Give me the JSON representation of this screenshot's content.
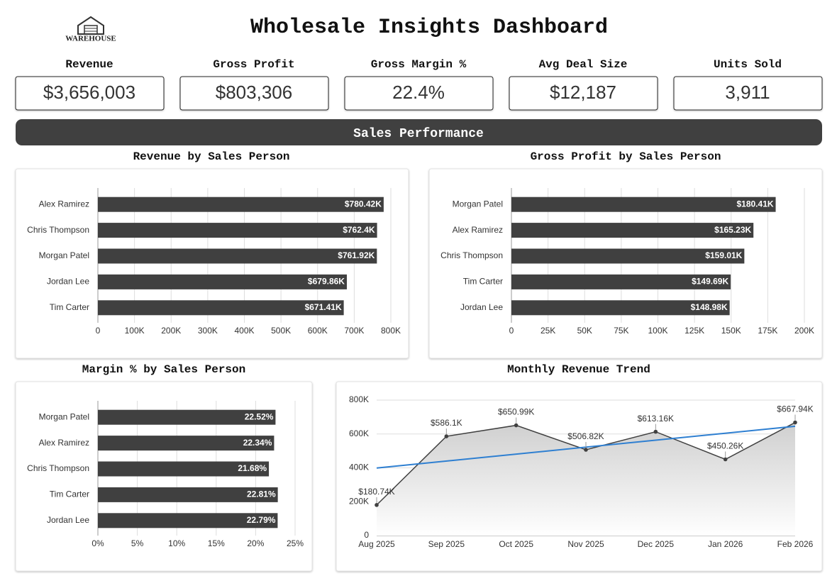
{
  "header": {
    "logo": "WAREHOUSE",
    "title": "Wholesale Insights Dashboard"
  },
  "kpis": [
    {
      "label": "Revenue",
      "value": "$3,656,003"
    },
    {
      "label": "Gross Profit",
      "value": "$803,306"
    },
    {
      "label": "Gross Margin %",
      "value": "22.4%"
    },
    {
      "label": "Avg Deal Size",
      "value": "$12,187"
    },
    {
      "label": "Units Sold",
      "value": "3,911"
    }
  ],
  "section": "Sales Performance",
  "chart_data": [
    {
      "type": "bar",
      "horizontal": true,
      "title": "Revenue by Sales Person",
      "color": "#404040",
      "grid": true,
      "categories": [
        "Alex Ramirez",
        "Chris Thompson",
        "Morgan Patel",
        "Jordan Lee",
        "Tim Carter"
      ],
      "values": [
        780420,
        762400,
        761920,
        679860,
        671410
      ],
      "value_labels": [
        "$780.42K",
        "$762.4K",
        "$761.92K",
        "$679.86K",
        "$671.41K"
      ],
      "xlim": [
        0,
        800000
      ],
      "xticks": [
        0,
        {
          "value": 100000,
          "label": "100K"
        },
        {
          "value": 200000,
          "label": "200K"
        },
        {
          "value": 300000,
          "label": "300K"
        },
        {
          "value": 400000,
          "label": "400K"
        },
        {
          "value": 500000,
          "label": "500K"
        },
        {
          "value": 600000,
          "label": "600K"
        },
        {
          "value": 700000,
          "label": "700K"
        },
        {
          "value": 800000,
          "label": "800K"
        }
      ]
    },
    {
      "type": "bar",
      "horizontal": true,
      "title": "Gross Profit by Sales Person",
      "color": "#404040",
      "grid": true,
      "categories": [
        "Morgan Patel",
        "Alex Ramirez",
        "Chris Thompson",
        "Tim Carter",
        "Jordan Lee"
      ],
      "values": [
        180410,
        165230,
        159010,
        149690,
        148980
      ],
      "value_labels": [
        "$180.41K",
        "$165.23K",
        "$159.01K",
        "$149.69K",
        "$148.98K"
      ],
      "xlim": [
        0,
        200000
      ],
      "xticks": [
        0,
        {
          "value": 25000,
          "label": "25K"
        },
        {
          "value": 50000,
          "label": "50K"
        },
        {
          "value": 75000,
          "label": "75K"
        },
        {
          "value": 100000,
          "label": "100K"
        },
        {
          "value": 125000,
          "label": "125K"
        },
        {
          "value": 150000,
          "label": "150K"
        },
        {
          "value": 175000,
          "label": "175K"
        },
        {
          "value": 200000,
          "label": "200K"
        }
      ]
    },
    {
      "type": "bar",
      "horizontal": true,
      "title": "Margin % by Sales Person",
      "color": "#404040",
      "grid": true,
      "categories": [
        "Morgan Patel",
        "Alex Ramirez",
        "Chris Thompson",
        "Tim Carter",
        "Jordan Lee"
      ],
      "values": [
        22.52,
        22.34,
        21.68,
        22.81,
        22.79
      ],
      "value_labels": [
        "22.52%",
        "22.34%",
        "21.68%",
        "22.81%",
        "22.79%"
      ],
      "xlim": [
        0,
        25
      ],
      "xticks": [
        {
          "value": 0,
          "label": "0%"
        },
        {
          "value": 5,
          "label": "5%"
        },
        {
          "value": 10,
          "label": "10%"
        },
        {
          "value": 15,
          "label": "15%"
        },
        {
          "value": 20,
          "label": "20%"
        },
        {
          "value": 25,
          "label": "25%"
        }
      ]
    },
    {
      "type": "line",
      "title": "Monthly Revenue Trend",
      "color": "#404040",
      "trend_color": "#2e7fd1",
      "trendline": true,
      "area": true,
      "grid": true,
      "categories": [
        "Aug 2025",
        "Sep 2025",
        "Oct 2025",
        "Nov 2025",
        "Dec 2025",
        "Jan 2026",
        "Feb 2026"
      ],
      "values": [
        180740,
        586100,
        650990,
        506820,
        613160,
        450260,
        667940
      ],
      "value_labels": [
        "$180.74K",
        "$586.1K",
        "$650.99K",
        "$506.82K",
        "$613.16K",
        "$450.26K",
        "$667.94K"
      ],
      "ylim": [
        0,
        800000
      ],
      "yticks": [
        0,
        {
          "value": 200000,
          "label": "200K"
        },
        {
          "value": 400000,
          "label": "400K"
        },
        {
          "value": 600000,
          "label": "600K"
        },
        {
          "value": 800000,
          "label": "800K"
        }
      ]
    }
  ]
}
